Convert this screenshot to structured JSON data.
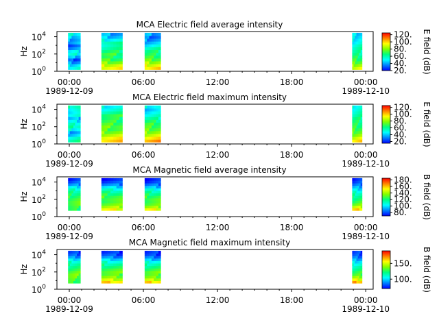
{
  "colors": {
    "jet": [
      "#0000ff",
      "#0080ff",
      "#00ffff",
      "#00ff80",
      "#80ff00",
      "#ffff00",
      "#ff8000",
      "#ff0000"
    ],
    "background": "#ffffff",
    "axis": "#000000"
  },
  "chart_data": [
    {
      "type": "heatmap",
      "title": "MCA  Electric field average intensity",
      "ylabel": "Hz",
      "colorbar_label": "E field (dB)",
      "colorbar_range": [
        20,
        125
      ],
      "colorbar_ticks": [
        "20.",
        "40.",
        "60.",
        "80.",
        "100.",
        "120."
      ],
      "x_ticks": [
        "00:00",
        "06:00",
        "12:00",
        "18:00",
        "00:00"
      ],
      "x_dates": [
        "1989-12-09",
        "1989-12-10"
      ],
      "y_ticks": [
        "10^0",
        "10^2",
        "10^4"
      ],
      "xlim_hours": [
        -1,
        24.6
      ],
      "ylim_log10": [
        0,
        4.6
      ],
      "segments": [
        {
          "start": -0.1,
          "end": 0.9,
          "bins": [
            [
              "00:00",
              [
                54,
                48,
                38,
                30,
                42,
                52,
                48,
                36,
                30,
                42,
                40,
                45,
                52
              ]
            ]
          ]
        },
        {
          "start": 2.6,
          "end": 4.3,
          "bins": [
            [
              "06:00",
              [
                96,
                90,
                80,
                72,
                66,
                70,
                65,
                60,
                58,
                62,
                52,
                44,
                40
              ]
            ]
          ]
        },
        {
          "start": 6.1,
          "end": 7.4,
          "bins": [
            [
              "06:00",
              [
                100,
                92,
                84,
                76,
                70,
                66,
                64,
                58,
                50,
                44,
                38,
                34,
                40
              ]
            ]
          ]
        },
        {
          "start": 22.9,
          "end": 23.7,
          "bins": [
            [
              "00:00",
              [
                92,
                84,
                76,
                70,
                66,
                62,
                60,
                58,
                56,
                52,
                50,
                48,
                46
              ]
            ]
          ]
        }
      ]
    },
    {
      "type": "heatmap",
      "title": "MCA  Electric field maximum intensity",
      "ylabel": "Hz",
      "colorbar_label": "E field (dB)",
      "colorbar_range": [
        15,
        125
      ],
      "colorbar_ticks": [
        "20.",
        "40.",
        "60.",
        "80.",
        "100.",
        "120."
      ],
      "x_ticks": [
        "00:00",
        "06:00",
        "12:00",
        "18:00",
        "00:00"
      ],
      "x_dates": [
        "1989-12-09",
        "1989-12-10"
      ],
      "y_ticks": [
        "10^0",
        "10^2",
        "10^4"
      ],
      "xlim_hours": [
        -1,
        24.6
      ],
      "ylim_log10": [
        0,
        4.6
      ],
      "segments": [
        {
          "start": -0.1,
          "end": 0.9,
          "bins": [
            [
              "00:00",
              [
                58,
                52,
                42,
                36,
                48,
                56,
                52,
                44,
                38,
                48,
                46,
                50,
                56
              ]
            ]
          ]
        },
        {
          "start": 2.6,
          "end": 4.3,
          "bins": [
            [
              "06:00",
              [
                98,
                94,
                86,
                78,
                72,
                74,
                70,
                66,
                64,
                66,
                58,
                52,
                48
              ]
            ]
          ]
        },
        {
          "start": 6.1,
          "end": 7.4,
          "bins": [
            [
              "06:00",
              [
                104,
                96,
                88,
                80,
                74,
                70,
                68,
                62,
                56,
                50,
                46,
                42,
                48
              ]
            ]
          ]
        },
        {
          "start": 22.9,
          "end": 23.7,
          "bins": [
            [
              "00:00",
              [
                96,
                88,
                80,
                74,
                70,
                66,
                64,
                62,
                60,
                56,
                54,
                52,
                50
              ]
            ]
          ]
        }
      ]
    },
    {
      "type": "heatmap",
      "title": "MCA  Magnetic field average intensity",
      "ylabel": "Hz",
      "colorbar_label": "B field (dB)",
      "colorbar_range": [
        70,
        185
      ],
      "colorbar_ticks": [
        "80.",
        "100.",
        "120.",
        "140.",
        "160.",
        "180."
      ],
      "x_ticks": [
        "00:00",
        "06:00",
        "12:00",
        "18:00",
        "00:00"
      ],
      "x_dates": [
        "1989-12-09",
        "1989-12-10"
      ],
      "y_ticks": [
        "10^0",
        "10^2",
        "10^4"
      ],
      "xlim_hours": [
        -1,
        24.6
      ],
      "ylim_log10": [
        0,
        4.6
      ],
      "segments": [
        {
          "start": -0.1,
          "end": 0.9,
          "bins": [
            [
              "00:00",
              [
                122,
                124,
                128,
                130,
                128,
                124,
                120,
                116,
                110,
                100,
                88,
                80,
                76
              ]
            ]
          ]
        },
        {
          "start": 2.6,
          "end": 4.3,
          "bins": [
            [
              "06:00",
              [
                150,
                140,
                132,
                128,
                130,
                128,
                122,
                116,
                108,
                98,
                86,
                78,
                74
              ]
            ]
          ]
        },
        {
          "start": 6.1,
          "end": 7.4,
          "bins": [
            [
              "06:00",
              [
                150,
                138,
                130,
                128,
                130,
                126,
                120,
                114,
                106,
                94,
                84,
                76,
                74
              ]
            ]
          ]
        },
        {
          "start": 22.9,
          "end": 23.7,
          "bins": [
            [
              "00:00",
              [
                156,
                144,
                132,
                126,
                122,
                118,
                114,
                108,
                100,
                92,
                84,
                78,
                76
              ]
            ]
          ]
        }
      ]
    },
    {
      "type": "heatmap",
      "title": "MCA  Magnetic field maximum intensity",
      "ylabel": "Hz",
      "colorbar_label": "B field (dB)",
      "colorbar_range": [
        70,
        190
      ],
      "colorbar_ticks": [
        "100.",
        "150."
      ],
      "x_ticks": [
        "00:00",
        "06:00",
        "12:00",
        "18:00",
        "00:00"
      ],
      "x_dates": [
        "1989-12-09",
        "1989-12-10"
      ],
      "y_ticks": [
        "10^0",
        "10^2",
        "10^4"
      ],
      "xlim_hours": [
        -1,
        24.6
      ],
      "ylim_log10": [
        0,
        4.6
      ],
      "segments": [
        {
          "start": -0.1,
          "end": 0.9,
          "bins": [
            [
              "00:00",
              [
                128,
                130,
                134,
                136,
                132,
                126,
                122,
                118,
                112,
                102,
                90,
                82,
                78
              ]
            ]
          ]
        },
        {
          "start": 2.6,
          "end": 4.3,
          "bins": [
            [
              "06:00",
              [
                160,
                148,
                138,
                132,
                134,
                130,
                124,
                118,
                110,
                100,
                88,
                80,
                76
              ]
            ]
          ]
        },
        {
          "start": 6.1,
          "end": 7.4,
          "bins": [
            [
              "06:00",
              [
                160,
                146,
                136,
                132,
                134,
                128,
                122,
                116,
                108,
                96,
                86,
                78,
                76
              ]
            ]
          ]
        },
        {
          "start": 22.9,
          "end": 23.7,
          "bins": [
            [
              "00:00",
              [
                166,
                152,
                140,
                130,
                126,
                120,
                116,
                110,
                102,
                94,
                86,
                80,
                78
              ]
            ]
          ]
        }
      ]
    }
  ]
}
